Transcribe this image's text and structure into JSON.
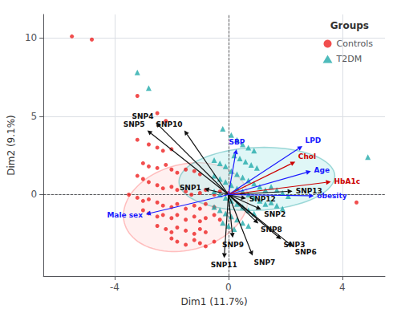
{
  "chart_data": {
    "type": "scatter",
    "xlabel": "Dim1 (11.7%)",
    "ylabel": "Dim2 (9.1%)",
    "xlim": [
      -6.5,
      5.5
    ],
    "ylim": [
      -5.2,
      11.5
    ],
    "xticks": [
      -4,
      0,
      4
    ],
    "yticks": [
      0,
      5,
      10
    ],
    "grid": true,
    "legend": "upper right",
    "legend_title": "Groups",
    "hlines": [
      0
    ],
    "vlines": [
      0
    ],
    "series": [
      {
        "name": "Controls",
        "color": "#ee2222",
        "marker": "circle",
        "ellipse": {
          "cx": -1.5,
          "cy": -0.8,
          "width": 4.2,
          "height": 5.8,
          "angle": -18,
          "facecolor": "#ffdddd",
          "edgecolor": "#ff7777"
        },
        "points": [
          [
            -5.5,
            10.1
          ],
          [
            -4.8,
            9.9
          ],
          [
            -3.2,
            6.3
          ],
          [
            -2.5,
            5.2
          ],
          [
            -2.2,
            4.7
          ],
          [
            -3.2,
            3.5
          ],
          [
            -2.8,
            3.2
          ],
          [
            -2.5,
            3.0
          ],
          [
            -2.3,
            2.8
          ],
          [
            -2.0,
            2.9
          ],
          [
            -3.0,
            2.0
          ],
          [
            -2.8,
            1.8
          ],
          [
            -2.5,
            1.7
          ],
          [
            -2.2,
            1.9
          ],
          [
            -2.0,
            1.6
          ],
          [
            -1.8,
            1.4
          ],
          [
            -1.5,
            1.6
          ],
          [
            -1.2,
            1.5
          ],
          [
            -1.0,
            1.3
          ],
          [
            -3.2,
            1.2
          ],
          [
            -3.0,
            1.0
          ],
          [
            -2.8,
            0.8
          ],
          [
            -2.5,
            0.6
          ],
          [
            -2.3,
            0.4
          ],
          [
            -2.0,
            0.5
          ],
          [
            -1.8,
            0.3
          ],
          [
            -1.5,
            0.2
          ],
          [
            -1.3,
            0.0
          ],
          [
            -1.0,
            0.1
          ],
          [
            -0.8,
            0.3
          ],
          [
            -0.5,
            0.0
          ],
          [
            -0.3,
            0.2
          ],
          [
            0.0,
            0.1
          ],
          [
            -3.5,
            0.0
          ],
          [
            -3.2,
            -0.2
          ],
          [
            -3.0,
            -0.4
          ],
          [
            -2.8,
            -0.3
          ],
          [
            -2.5,
            -0.5
          ],
          [
            -2.3,
            -0.7
          ],
          [
            -2.0,
            -0.8
          ],
          [
            -1.8,
            -0.6
          ],
          [
            -1.5,
            -0.9
          ],
          [
            -1.2,
            -0.7
          ],
          [
            -1.0,
            -0.9
          ],
          [
            -0.8,
            -0.6
          ],
          [
            -0.5,
            -0.8
          ],
          [
            -3.0,
            -1.0
          ],
          [
            -2.8,
            -1.2
          ],
          [
            -2.5,
            -1.4
          ],
          [
            -2.3,
            -1.3
          ],
          [
            -2.0,
            -1.5
          ],
          [
            -1.8,
            -1.3
          ],
          [
            -1.5,
            -1.6
          ],
          [
            -1.2,
            -1.4
          ],
          [
            -1.0,
            -1.7
          ],
          [
            -0.8,
            -1.5
          ],
          [
            -0.5,
            -1.3
          ],
          [
            -0.3,
            -1.6
          ],
          [
            -2.5,
            -2.0
          ],
          [
            -2.2,
            -2.2
          ],
          [
            -2.0,
            -2.4
          ],
          [
            -1.8,
            -2.1
          ],
          [
            -1.5,
            -2.3
          ],
          [
            -1.2,
            -2.5
          ],
          [
            -1.0,
            -2.2
          ],
          [
            -0.8,
            -2.4
          ],
          [
            -2.0,
            -2.8
          ],
          [
            -1.8,
            -3.0
          ],
          [
            -1.5,
            -3.2
          ],
          [
            -1.2,
            -2.9
          ],
          [
            -1.0,
            -3.1
          ],
          [
            -0.8,
            -3.3
          ],
          [
            -0.5,
            -3.0
          ],
          [
            4.5,
            -0.5
          ]
        ]
      },
      {
        "name": "T2DM",
        "color": "#22aaaa",
        "marker": "triangle",
        "ellipse": {
          "cx": 1.0,
          "cy": 1.0,
          "width": 5.5,
          "height": 4.0,
          "angle": 8,
          "facecolor": "#bbeeee",
          "edgecolor": "#33aaaa"
        },
        "points": [
          [
            -3.2,
            7.8
          ],
          [
            -2.8,
            6.8
          ],
          [
            -0.2,
            4.2
          ],
          [
            0.1,
            3.8
          ],
          [
            0.3,
            3.5
          ],
          [
            0.5,
            3.2
          ],
          [
            0.7,
            3.0
          ],
          [
            0.9,
            2.8
          ],
          [
            0.2,
            2.5
          ],
          [
            0.4,
            2.3
          ],
          [
            0.6,
            2.1
          ],
          [
            0.8,
            1.9
          ],
          [
            1.0,
            1.7
          ],
          [
            -0.5,
            2.2
          ],
          [
            -0.3,
            2.0
          ],
          [
            -0.1,
            1.8
          ],
          [
            0.1,
            1.5
          ],
          [
            0.3,
            1.3
          ],
          [
            0.5,
            1.1
          ],
          [
            0.7,
            0.9
          ],
          [
            0.9,
            0.7
          ],
          [
            1.1,
            0.5
          ],
          [
            1.3,
            0.3
          ],
          [
            -0.5,
            1.2
          ],
          [
            -0.3,
            1.0
          ],
          [
            -0.1,
            0.8
          ],
          [
            0.1,
            0.6
          ],
          [
            0.3,
            0.4
          ],
          [
            0.5,
            0.2
          ],
          [
            0.7,
            0.0
          ],
          [
            0.9,
            -0.2
          ],
          [
            1.1,
            -0.4
          ],
          [
            1.3,
            -0.6
          ],
          [
            -0.5,
            0.2
          ],
          [
            -0.3,
            0.0
          ],
          [
            -0.1,
            -0.2
          ],
          [
            0.1,
            -0.4
          ],
          [
            0.3,
            -0.6
          ],
          [
            0.5,
            -0.8
          ],
          [
            0.7,
            -1.0
          ],
          [
            0.9,
            -1.2
          ],
          [
            -0.5,
            -0.8
          ],
          [
            -0.3,
            -1.0
          ],
          [
            -0.1,
            -1.2
          ],
          [
            0.1,
            -1.4
          ],
          [
            0.3,
            -1.6
          ],
          [
            0.5,
            -1.8
          ],
          [
            0.7,
            -2.0
          ],
          [
            1.5,
            0.5
          ],
          [
            1.7,
            0.3
          ],
          [
            1.9,
            0.1
          ],
          [
            2.1,
            -0.1
          ],
          [
            1.5,
            -0.5
          ],
          [
            1.7,
            -0.7
          ],
          [
            1.9,
            -0.9
          ],
          [
            -0.2,
            -1.8
          ],
          [
            0.0,
            -2.0
          ],
          [
            0.2,
            -2.2
          ],
          [
            4.9,
            2.4
          ]
        ]
      }
    ],
    "arrows": [
      {
        "name": "SNP1",
        "dx": -0.85,
        "dy": 0.38,
        "color": "#111111"
      },
      {
        "name": "SNP2",
        "dx": 1.15,
        "dy": -0.95,
        "color": "#111111"
      },
      {
        "name": "SNP3",
        "dx": 1.85,
        "dy": -2.85,
        "color": "#111111"
      },
      {
        "name": "SNP4",
        "dx": -2.55,
        "dy": 4.6,
        "color": "#111111"
      },
      {
        "name": "SNP5",
        "dx": -2.85,
        "dy": 4.1,
        "color": "#111111"
      },
      {
        "name": "SNP6",
        "dx": 2.25,
        "dy": -3.3,
        "color": "#111111"
      },
      {
        "name": "SNP7",
        "dx": 0.85,
        "dy": -3.9,
        "color": "#111111"
      },
      {
        "name": "SNP8",
        "dx": 1.05,
        "dy": -1.85,
        "color": "#111111"
      },
      {
        "name": "SNP9",
        "dx": 0.15,
        "dy": -2.75,
        "color": "#111111"
      },
      {
        "name": "SNP10",
        "dx": -1.55,
        "dy": 4.1,
        "color": "#111111"
      },
      {
        "name": "SNP11",
        "dx": -0.15,
        "dy": -4.05,
        "color": "#111111"
      },
      {
        "name": "SNP12",
        "dx": 0.62,
        "dy": -0.25,
        "color": "#111111"
      },
      {
        "name": "SNP13",
        "dx": 2.25,
        "dy": 0.22,
        "color": "#111111"
      },
      {
        "name": "SBP",
        "dx": 0.28,
        "dy": 2.9,
        "color": "#1a1aff"
      },
      {
        "name": "LPD",
        "dx": 2.6,
        "dy": 3.1,
        "color": "#1a1aff"
      },
      {
        "name": "Chol",
        "dx": 2.35,
        "dy": 2.1,
        "color": "#cc0000"
      },
      {
        "name": "Age",
        "dx": 2.9,
        "dy": 1.5,
        "color": "#1a1aff"
      },
      {
        "name": "HbA1c",
        "dx": 3.6,
        "dy": 0.82,
        "color": "#cc0000"
      },
      {
        "name": "obesity",
        "dx": 3.0,
        "dy": -0.08,
        "color": "#1a1aff"
      },
      {
        "name": "Male sex",
        "dx": -2.9,
        "dy": -1.25,
        "color": "#1a1aff"
      }
    ]
  }
}
